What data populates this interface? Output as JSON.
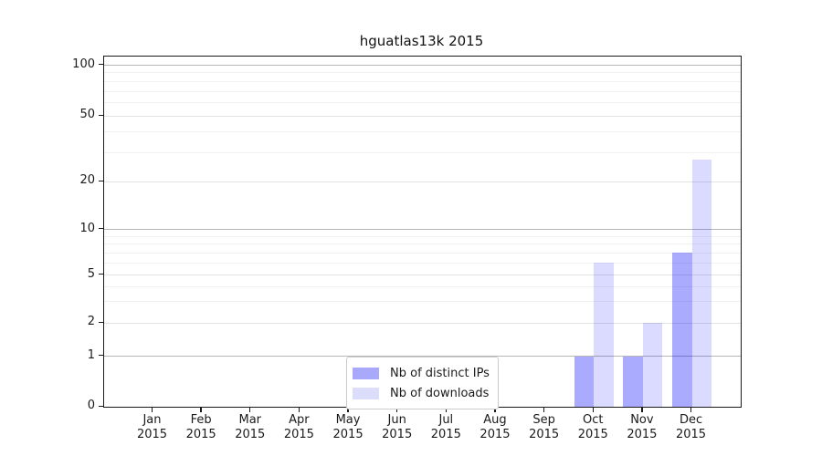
{
  "chart_data": {
    "type": "bar",
    "title": "hguatlas13k 2015",
    "categories": [
      "Jan",
      "Feb",
      "Mar",
      "Apr",
      "May",
      "Jun",
      "Jul",
      "Aug",
      "Sep",
      "Oct",
      "Nov",
      "Dec"
    ],
    "category_year": "2015",
    "series": [
      {
        "name": "Nb of distinct IPs",
        "color": "#a9a9fb",
        "fill": "rgba(0,0,255,0.335)",
        "values": [
          0,
          0,
          0,
          0,
          0,
          0,
          0,
          0,
          0,
          1,
          1,
          7
        ]
      },
      {
        "name": "Nb of downloads",
        "color": "#dcdcfb",
        "fill": "rgba(0,0,255,0.14)",
        "values": [
          0,
          0,
          0,
          0,
          0,
          0,
          0,
          0,
          0,
          6,
          2,
          27
        ]
      }
    ],
    "yticks": [
      0,
      1,
      2,
      5,
      10,
      20,
      50,
      100
    ],
    "minor_gridline_values": [
      3,
      4,
      6,
      7,
      8,
      9,
      30,
      40,
      60,
      70,
      80,
      90
    ],
    "yscale": "symlog",
    "ylim": [
      0,
      112
    ],
    "xlabel": "",
    "ylabel": "",
    "grid": true,
    "legend_position": "lower center"
  }
}
